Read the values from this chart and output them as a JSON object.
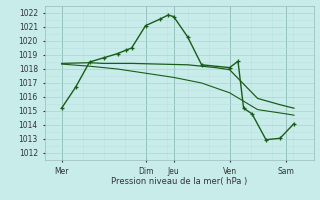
{
  "background_color": "#c8ecea",
  "grid_major_color": "#aad4d0",
  "grid_minor_color": "#bde0dc",
  "line_color": "#1a5c1a",
  "ylabel_text": "Pression niveau de la mer( hPa )",
  "ylim": [
    1011.5,
    1022.5
  ],
  "yticks": [
    1012,
    1013,
    1014,
    1015,
    1016,
    1017,
    1018,
    1019,
    1020,
    1021,
    1022
  ],
  "x_day_labels": [
    "Mer",
    "Dim",
    "Jeu",
    "Ven",
    "Sam"
  ],
  "x_day_positions": [
    0.5,
    3.5,
    4.5,
    6.5,
    8.5
  ],
  "x_vline_positions": [
    0.5,
    3.5,
    4.5,
    6.5,
    8.5
  ],
  "xlim": [
    -0.1,
    9.5
  ],
  "series1_x": [
    0.5,
    1.0,
    1.5,
    2.0,
    2.5,
    2.8,
    3.0,
    3.5,
    4.0,
    4.3,
    4.5,
    5.0,
    5.5,
    6.5,
    6.8,
    7.0,
    7.3,
    7.8,
    8.3,
    8.8
  ],
  "series1_y": [
    1015.2,
    1016.7,
    1018.5,
    1018.8,
    1019.1,
    1019.35,
    1019.5,
    1021.1,
    1021.55,
    1021.85,
    1021.75,
    1020.3,
    1018.3,
    1018.1,
    1018.55,
    1015.2,
    1014.8,
    1012.95,
    1013.05,
    1014.1
  ],
  "series2_x": [
    0.5,
    1.5,
    2.0,
    2.5,
    3.0,
    4.0,
    5.0,
    6.0,
    6.5,
    7.5,
    8.3,
    8.8
  ],
  "series2_y": [
    1018.4,
    1018.45,
    1018.4,
    1018.4,
    1018.4,
    1018.35,
    1018.3,
    1018.1,
    1017.95,
    1015.9,
    1015.45,
    1015.2
  ],
  "series3_x": [
    0.5,
    1.5,
    2.5,
    3.5,
    4.5,
    5.5,
    6.5,
    7.5,
    8.5,
    8.8
  ],
  "series3_y": [
    1018.35,
    1018.2,
    1018.0,
    1017.7,
    1017.4,
    1017.0,
    1016.3,
    1015.1,
    1014.8,
    1014.7
  ]
}
